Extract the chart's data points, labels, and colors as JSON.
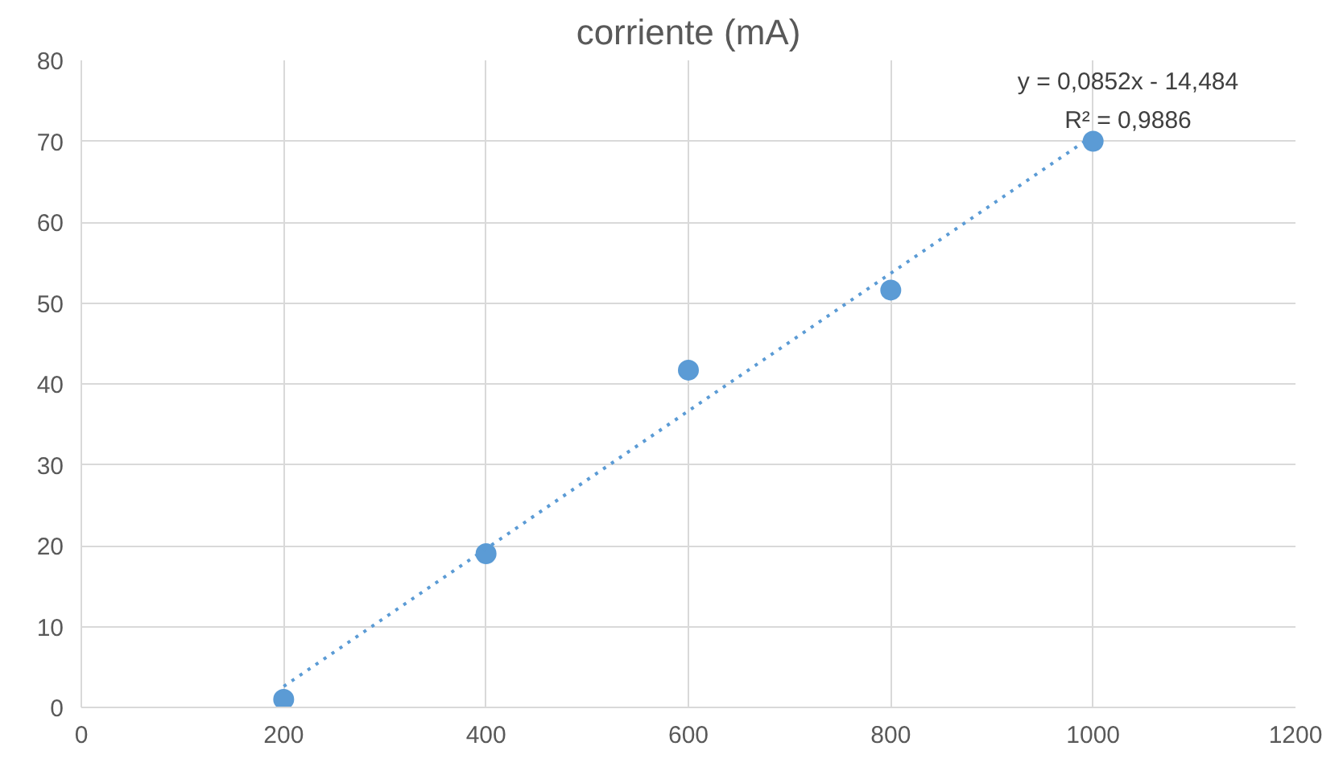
{
  "chart_data": {
    "type": "scatter",
    "title": "corriente (mA)",
    "series": [
      {
        "color": "#5b9bd5",
        "x": [
          200,
          400,
          600,
          800,
          1000
        ],
        "values": [
          1,
          19,
          41.7,
          51.6,
          70
        ],
        "marker": "circle"
      },
      {
        "type": "line",
        "color": "#5b9bd5",
        "x": [
          200,
          1000
        ],
        "values": [
          2.6,
          70.7
        ],
        "line_style": "dotted",
        "marker": "none"
      }
    ],
    "annotations": [
      "y = 0,0852x - 14,484",
      "R² = 0,9886"
    ],
    "xlim": [
      0,
      1200
    ],
    "xticks": [
      0,
      200,
      400,
      600,
      800,
      1000,
      1200
    ],
    "ylim": [
      0,
      80
    ],
    "yticks": [
      0,
      10,
      20,
      30,
      40,
      50,
      60,
      70,
      80
    ],
    "grid": true
  }
}
